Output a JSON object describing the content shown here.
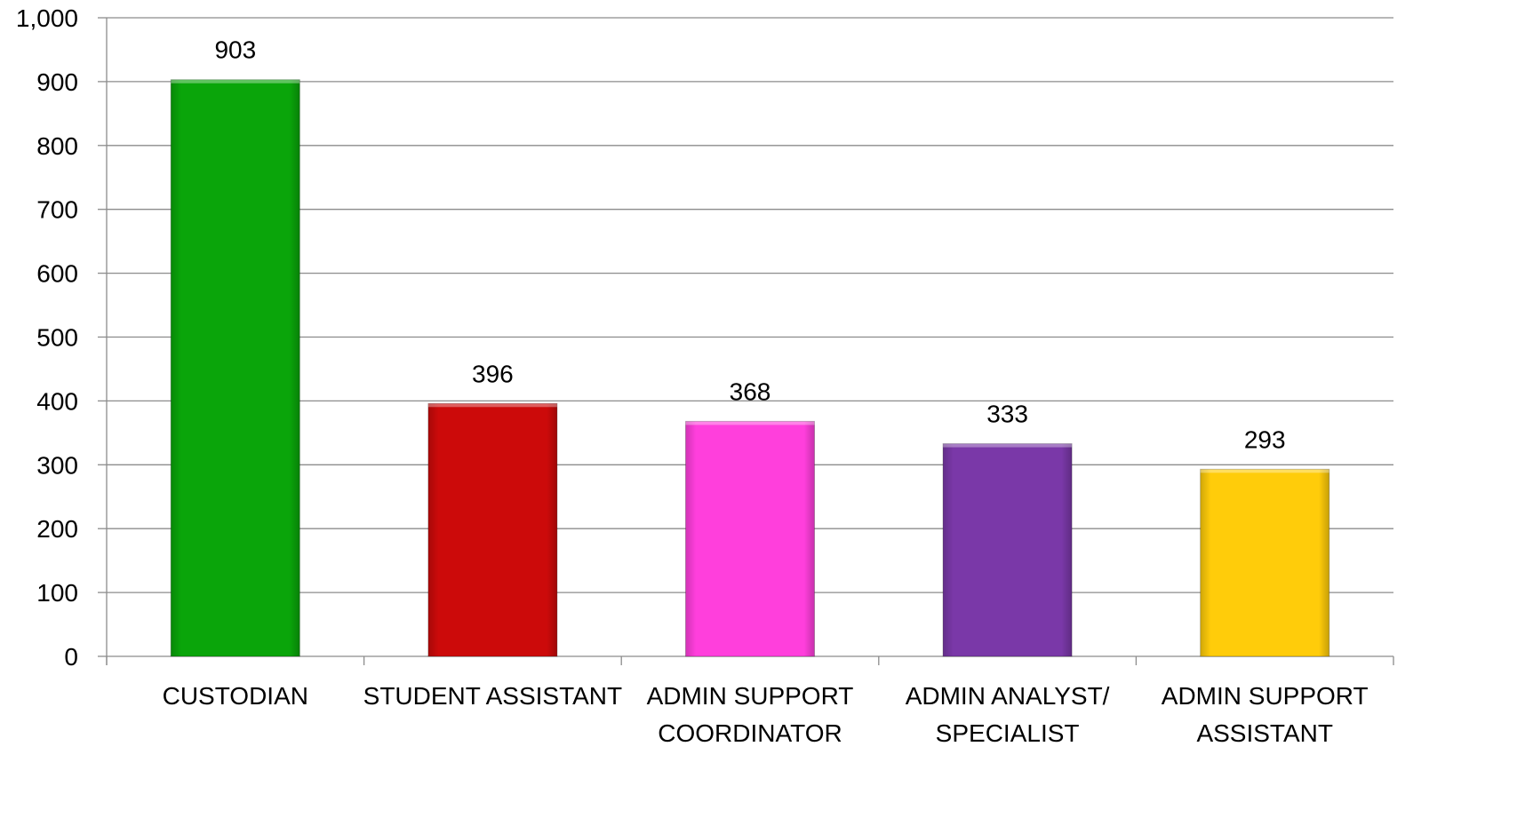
{
  "chart_data": {
    "type": "bar",
    "categories": [
      [
        "CUSTODIAN"
      ],
      [
        "STUDENT ASSISTANT"
      ],
      [
        "ADMIN SUPPORT",
        "COORDINATOR"
      ],
      [
        "ADMIN ANALYST/",
        "SPECIALIST"
      ],
      [
        "ADMIN SUPPORT",
        "ASSISTANT"
      ]
    ],
    "values": [
      903,
      396,
      368,
      333,
      293
    ],
    "value_labels": [
      "903",
      "396",
      "368",
      "333",
      "293"
    ],
    "colors": [
      "#0aa50a",
      "#cc0a0a",
      "#ff3fdc",
      "#7a38a8",
      "#ffcc0a"
    ],
    "ylim": [
      0,
      1000
    ],
    "yticks": [
      0,
      100,
      200,
      300,
      400,
      500,
      600,
      700,
      800,
      900,
      1000
    ],
    "ytick_labels": [
      "0",
      "100",
      "200",
      "300",
      "400",
      "500",
      "600",
      "700",
      "800",
      "900",
      "1,000"
    ],
    "grid": true,
    "legend": "none"
  }
}
